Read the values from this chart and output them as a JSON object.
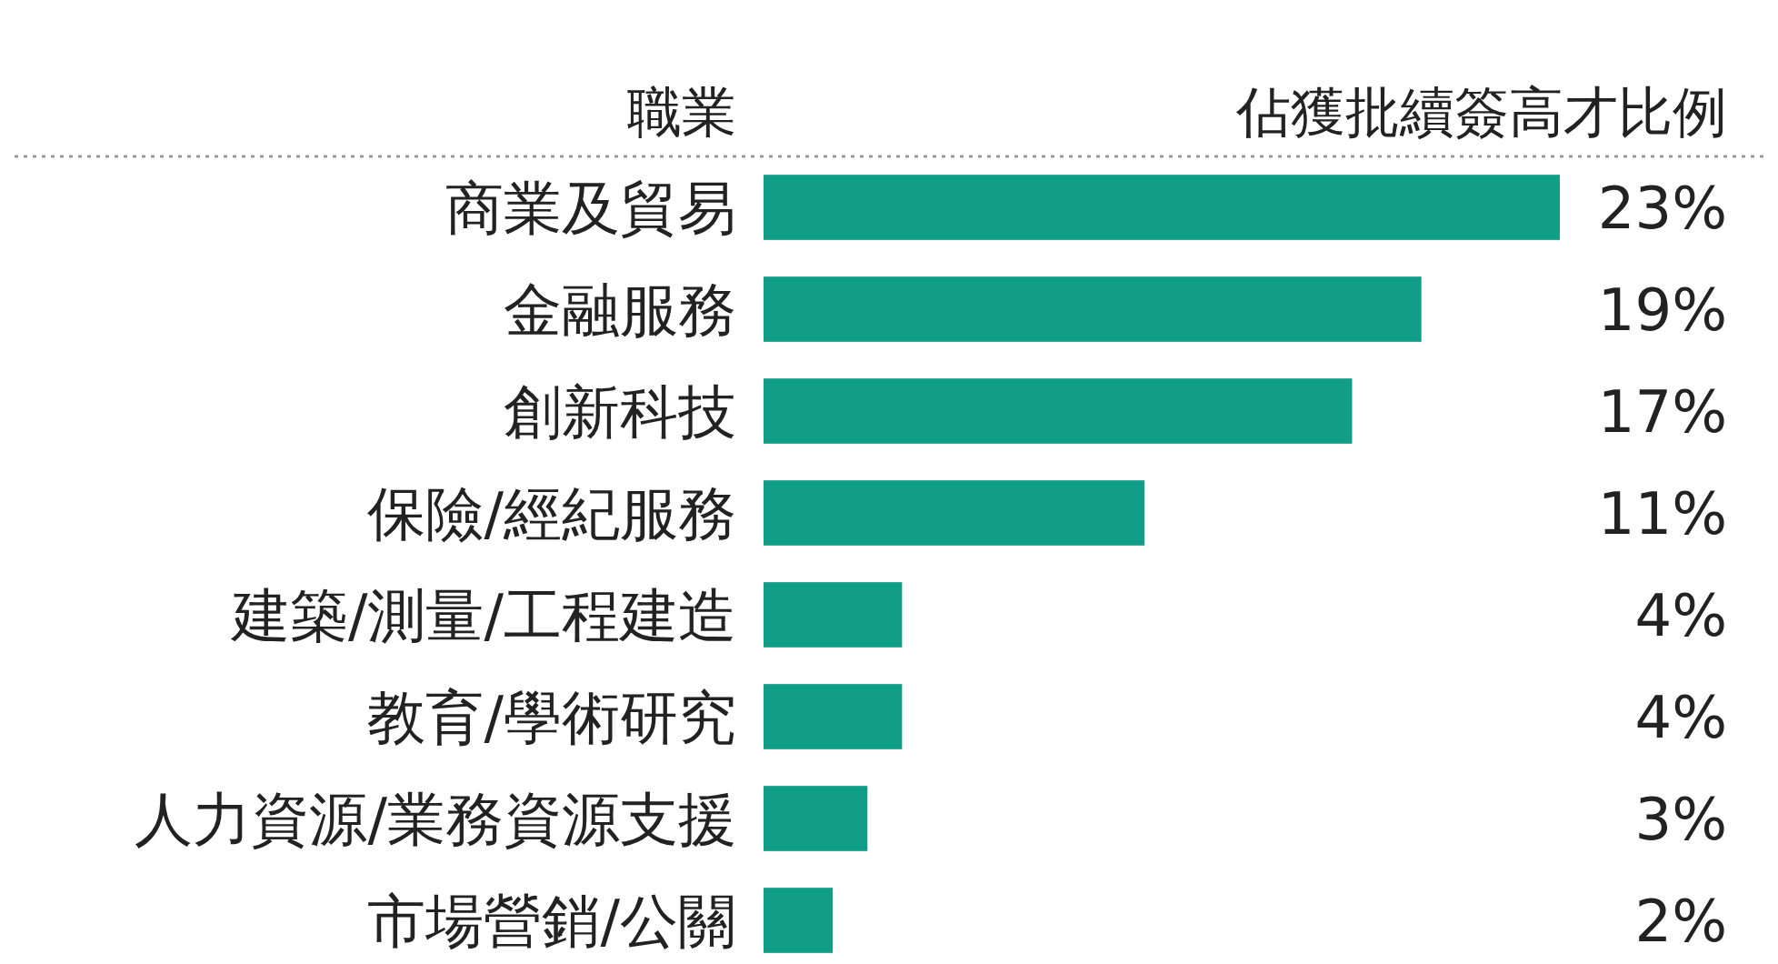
{
  "chart_data": {
    "type": "bar",
    "orientation": "horizontal",
    "ylabel": "職業",
    "xlabel": "佔獲批續簽高才比例",
    "categories": [
      "商業及貿易",
      "金融服務",
      "創新科技",
      "保險/經紀服務",
      "建築/測量/工程建造",
      "教育/學術研究",
      "人力資源/業務資源支援",
      "市場營銷/公關"
    ],
    "values": [
      23,
      19,
      17,
      11,
      4,
      4,
      3,
      2
    ],
    "value_labels": [
      "23%",
      "19%",
      "17%",
      "11%",
      "4%",
      "4%",
      "3%",
      "2%"
    ],
    "xlim": [
      0,
      23
    ],
    "tick_labels": false,
    "color": "#119e88"
  }
}
